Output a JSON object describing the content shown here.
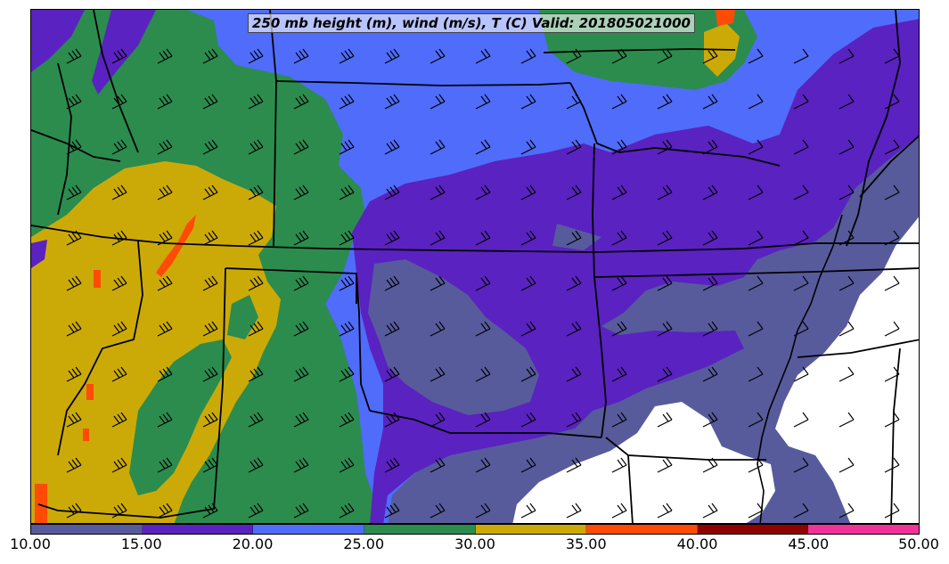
{
  "title": "250 mb height (m), wind (m/s), T (C) Valid: 201805021000",
  "legend": {
    "ticks": [
      "10.00",
      "15.00",
      "20.00",
      "25.00",
      "30.00",
      "35.00",
      "40.00",
      "45.00",
      "50.00"
    ],
    "colors": [
      "#575b9c",
      "#5a22c0",
      "#4f6cfa",
      "#2b8c4e",
      "#cbaa08",
      "#ff4b06",
      "#8c0300",
      "#f2329b"
    ]
  },
  "map": {
    "field": "250 mb wind speed (m/s), filled contours",
    "overlays": [
      "state boundaries",
      "Mississippi River",
      "wind barbs"
    ],
    "background": "#ffffff"
  }
}
